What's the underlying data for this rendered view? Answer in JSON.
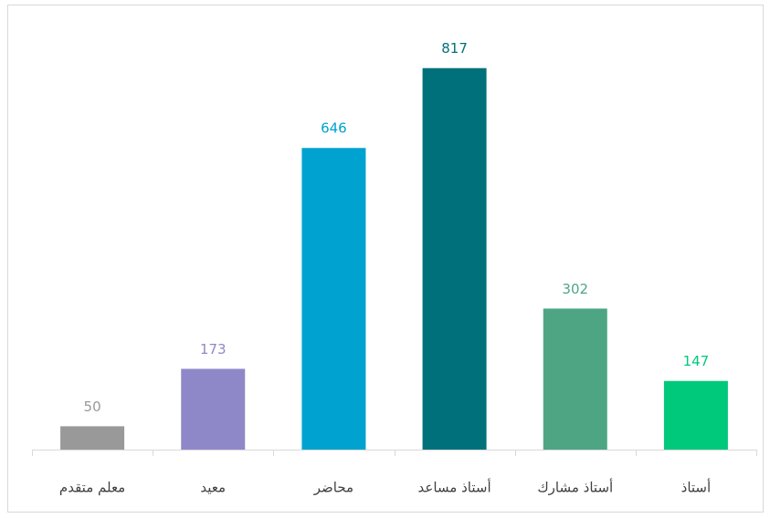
{
  "chart_data": {
    "type": "bar",
    "categories": [
      "معلم متقدم",
      "معيد",
      "محاضر",
      "أستاذ مساعد",
      "أستاذ مشارك",
      "أستاذ"
    ],
    "values": [
      50,
      173,
      646,
      817,
      302,
      147
    ],
    "colors": [
      "#999999",
      "#8f88c8",
      "#00a3cf",
      "#00717a",
      "#4ea584",
      "#00c97b"
    ]
  }
}
